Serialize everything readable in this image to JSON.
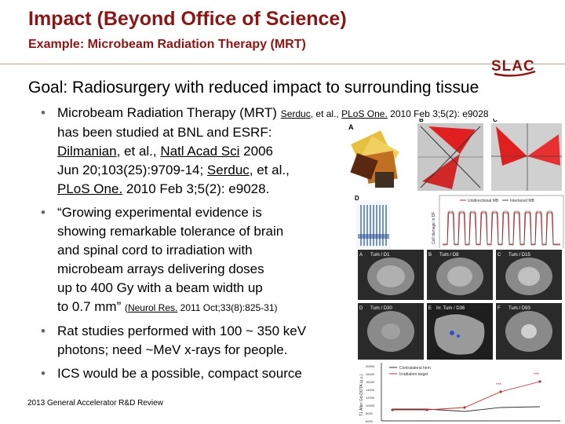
{
  "slide": {
    "title": "Impact (Beyond Office of Science)",
    "subtitle": "Example: Microbeam Radiation Therapy (MRT)",
    "logo": "SLAC",
    "goal": "Goal: Radiosurgery with reduced impact to surrounding tissue",
    "footer": "2013 General Accelerator R&D Review"
  },
  "bullets": {
    "b1": {
      "l1_text": "Microbeam Radiation Therapy (MRT) ",
      "l1_ref_author": "Serduc",
      "l1_ref_mid": ", et al., ",
      "l1_ref_journal": "PLoS One.",
      "l1_ref_tail": " 2010 Feb 3;5(2): e9028",
      "l2": "has been studied at BNL and ESRF:",
      "l3_author": "Dilmanian",
      "l3_mid": ", et al., ",
      "l3_journal": "Natl Acad Sci",
      "l3_tail": " 2006",
      "l4_text": "Jun 20;103(25):9709-14; ",
      "l4_author": "Serduc",
      "l4_tail": ", et al.,",
      "l5_journal": "PLoS One.",
      "l5_tail": " 2010 Feb 3;5(2): e9028."
    },
    "b2": {
      "l1": "“Growing experimental evidence is",
      "l2": "showing remarkable tolerance of brain",
      "l3": "and spinal cord to irradiation with",
      "l4": "microbeam arrays delivering doses",
      "l5": "up to 400 Gy with a beam width up",
      "l6_text": "to 0.7 mm” ",
      "l6_ref_open": "(",
      "l6_ref_journal": "Neurol Res.",
      "l6_ref_tail": " 2011 Oct;33(8):825-31)"
    },
    "b3": {
      "l1": "Rat studies performed with 100 ~ 350 keV",
      "l2": "photons; need ~MeV x-rays for people."
    },
    "b4": {
      "l1": "ICS would be a possible, compact source"
    }
  },
  "figure_top": {
    "panel_a": "A",
    "panel_b": "B",
    "panel_c": "C",
    "panel_d": "D",
    "legend_1": "Unidirectional MB",
    "legend_2": "Interlaced MB",
    "ylabel": "Cell damage in DF"
  },
  "figure_bottom": {
    "panel_labels": [
      "A",
      "B",
      "C",
      "D",
      "E",
      "F"
    ],
    "panel_titles": [
      "Tum / D1",
      "Tum / D8",
      "Tum / D15",
      "Tum / D30",
      "Irr. Tum / D36",
      "Tum / D93"
    ],
    "legend_1": "Contralateral hem",
    "legend_2": "Irradiation target",
    "ylabel": "T1 After Gd-DOTA (a.u.)",
    "y_ticks": [
      "20000",
      "18000",
      "16000",
      "14000",
      "12000",
      "10000",
      "8000",
      "6000"
    ],
    "stars": "***",
    "colors": {
      "target": "#c03030",
      "contra": "#303030"
    }
  }
}
